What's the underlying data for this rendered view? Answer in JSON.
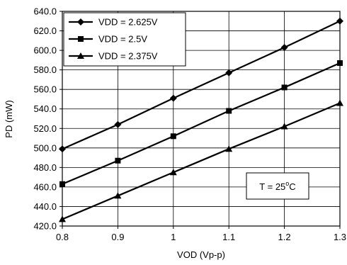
{
  "chart_data": {
    "type": "line",
    "xlabel": "VOD (Vp-p)",
    "ylabel": "PD (mW)",
    "x": [
      0.8,
      0.9,
      1.0,
      1.1,
      1.2,
      1.3
    ],
    "xlim": [
      0.8,
      1.3
    ],
    "ylim": [
      420.0,
      640.0
    ],
    "x_ticks": [
      "0.8",
      "0.9",
      "1",
      "1.1",
      "1.2",
      "1.3"
    ],
    "y_ticks": [
      "420.0",
      "440.0",
      "460.0",
      "480.0",
      "500.0",
      "520.0",
      "540.0",
      "560.0",
      "580.0",
      "600.0",
      "620.0",
      "640.0"
    ],
    "grid": true,
    "legend_position": "top-left",
    "series": [
      {
        "name": "VDD = 2.625V",
        "marker": "diamond",
        "values": [
          499,
          524,
          551,
          577,
          603,
          630
        ]
      },
      {
        "name": "VDD = 2.5V",
        "marker": "square",
        "values": [
          463,
          487,
          512,
          538,
          562,
          587
        ]
      },
      {
        "name": "VDD = 2.375V",
        "marker": "triangle",
        "values": [
          427,
          451,
          475,
          499,
          522,
          546
        ]
      }
    ],
    "annotation": {
      "prefix": "T = 25",
      "superscript": "o",
      "suffix": "C"
    }
  }
}
